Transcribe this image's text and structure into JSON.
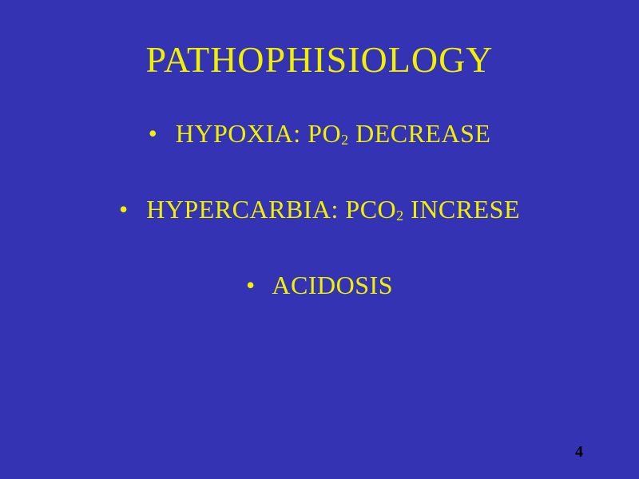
{
  "slide": {
    "background_color": "#3333b3",
    "text_color": "#f0f000",
    "font_family": "Times New Roman",
    "title": "PATHOPHISIOLOGY",
    "title_fontsize": 46,
    "bullets": [
      {
        "prefix": "HYPOXIA: PO",
        "subscript": "2",
        "suffix": " DECREASE"
      },
      {
        "prefix": "HYPERCARBIA: PCO",
        "subscript": "2",
        "suffix": " INCRESE"
      },
      {
        "prefix": "ACIDOSIS",
        "subscript": "",
        "suffix": ""
      }
    ],
    "bullet_fontsize": 32,
    "bullet_spacing": 58,
    "page_number": "4",
    "page_number_color": "#000000",
    "page_number_fontsize": 20
  }
}
